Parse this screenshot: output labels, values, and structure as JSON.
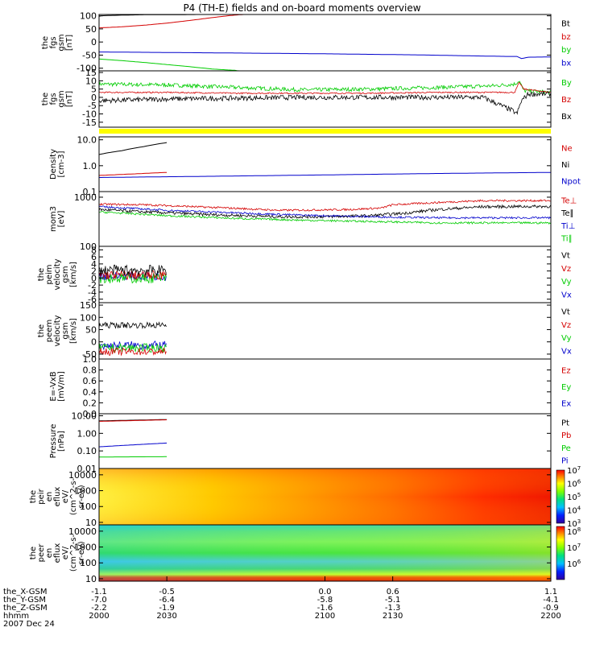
{
  "title": "P4 (TH-E) fields and on-board moments overview",
  "colors": {
    "black": "#000000",
    "red": "#d40000",
    "blue": "#0000cc",
    "green": "#00cc00",
    "yellow": "#ffff00"
  },
  "chart_data": [
    {
      "type": "line",
      "id": "bgsm",
      "ylabel": [
        "the",
        "fgs",
        "gsm",
        "[nT]"
      ],
      "yticks": [
        "100",
        "50",
        "0",
        "-50",
        "-100"
      ],
      "ylim": [
        -110,
        105
      ],
      "yscale": "linear",
      "legend": [
        "Bt",
        "bz",
        "by",
        "bx"
      ],
      "series": [
        {
          "name": "Bt",
          "color": "black",
          "x": [
            2000,
            2001,
            2004,
            2008,
            2013,
            2020,
            2030,
            2045,
            2060,
            2080,
            2100,
            2130,
            2200
          ],
          "y": [
            98,
            100,
            101,
            102,
            103,
            104,
            104,
            105,
            106,
            107,
            108,
            108,
            108
          ]
        },
        {
          "name": "bz",
          "color": "red",
          "x": [
            2000,
            2005,
            2010,
            2015,
            2020,
            2030,
            2040,
            2050,
            2058,
            2062,
            2070,
            2100
          ],
          "y": [
            54,
            56,
            58,
            61,
            64,
            72,
            82,
            93,
            101,
            104,
            108,
            108
          ]
        },
        {
          "name": "by",
          "color": "green",
          "x": [
            2000,
            2010,
            2020,
            2030,
            2040,
            2050,
            2060,
            2064,
            2070
          ],
          "y": [
            -65,
            -71,
            -78,
            -86,
            -94,
            -103,
            -108,
            -112,
            -112
          ]
        },
        {
          "name": "bx",
          "color": "blue",
          "x": [
            2000,
            2030,
            2060,
            2100,
            2140,
            2180,
            2185,
            2187,
            2190,
            2200
          ],
          "y": [
            -38,
            -40,
            -42,
            -45,
            -49,
            -55,
            -55,
            -63,
            -58,
            -57
          ]
        }
      ]
    },
    {
      "type": "line",
      "id": "bdetr",
      "ylabel": [
        "the",
        "fgs",
        "gsm",
        "[nT]"
      ],
      "yticks": [
        "15",
        "10",
        "5",
        "0",
        "-5",
        "-10",
        "-15"
      ],
      "ylim": [
        -18,
        16
      ],
      "yscale": "linear",
      "legend": [
        "By",
        "Bz",
        "Bx"
      ],
      "series": [
        {
          "name": "By",
          "color": "green",
          "noise": 1.2,
          "x": [
            2000,
            2030,
            2060,
            2090,
            2120,
            2150,
            2175,
            2184,
            2186,
            2188,
            2200
          ],
          "y": [
            8,
            7.5,
            6,
            4.5,
            5,
            6,
            7,
            8,
            10,
            4,
            3
          ]
        },
        {
          "name": "Bz",
          "color": "red",
          "noise": 0.4,
          "x": [
            2000,
            2030,
            2060,
            2090,
            2120,
            2150,
            2184,
            2186,
            2188,
            2200
          ],
          "y": [
            3,
            3,
            2.5,
            2.5,
            2.5,
            3,
            3,
            9,
            5,
            3
          ]
        },
        {
          "name": "Bx",
          "color": "black",
          "noise": 1.5,
          "x": [
            2000,
            2030,
            2060,
            2090,
            2120,
            2150,
            2170,
            2183,
            2185,
            2187,
            2190,
            2200
          ],
          "y": [
            -2,
            -1,
            -0.5,
            0,
            0,
            0,
            0,
            -8,
            -10,
            -2,
            2,
            2
          ]
        }
      ]
    },
    {
      "type": "line",
      "id": "dens",
      "ylabel": [
        "Density",
        "[cm-3]"
      ],
      "yticks": [
        "10.0",
        "1.0",
        "0.1"
      ],
      "ylim": [
        0.1,
        13
      ],
      "yscale": "log",
      "legend": [
        "Ne",
        "Ni",
        "Npot"
      ],
      "series": [
        {
          "name": "Ne",
          "color": "red",
          "x": [
            2000,
            2015,
            2030
          ],
          "y": [
            0.42,
            0.48,
            0.55
          ]
        },
        {
          "name": "Ni",
          "color": "black",
          "x": [
            2000,
            2010,
            2020,
            2030
          ],
          "y": [
            2.7,
            3.8,
            5.5,
            7.8
          ]
        },
        {
          "name": "Npot",
          "color": "blue",
          "x": [
            2000,
            2050,
            2100,
            2150,
            2200
          ],
          "y": [
            0.35,
            0.39,
            0.44,
            0.5,
            0.55
          ]
        }
      ]
    },
    {
      "type": "line",
      "id": "temp",
      "ylabel": [
        "mom3",
        "[eV]"
      ],
      "yticks": [
        "1000",
        "100"
      ],
      "ylim": [
        100,
        1300
      ],
      "yscale": "log",
      "legend": [
        "Te⊥",
        "Te∥",
        "Ti⊥",
        "Ti∥"
      ],
      "series": [
        {
          "name": "Te⊥",
          "color": "red",
          "noise": 0.02,
          "x": [
            2000,
            2020,
            2050,
            2080,
            2110,
            2125,
            2130,
            2150,
            2170,
            2200
          ],
          "y": [
            720,
            700,
            620,
            540,
            560,
            600,
            700,
            780,
            850,
            850
          ]
        },
        {
          "name": "Te∥",
          "color": "black",
          "noise": 0.03,
          "x": [
            2000,
            2020,
            2050,
            2080,
            2100,
            2120,
            2135,
            2150,
            2170,
            2200
          ],
          "y": [
            560,
            500,
            440,
            400,
            400,
            420,
            470,
            560,
            640,
            650
          ]
        },
        {
          "name": "Ti⊥",
          "color": "blue",
          "noise": 0.02,
          "x": [
            2000,
            2030,
            2060,
            2090,
            2120,
            2150,
            2200
          ],
          "y": [
            640,
            540,
            480,
            430,
            400,
            380,
            380
          ]
        },
        {
          "name": "Ti∥",
          "color": "green",
          "noise": 0.02,
          "x": [
            2000,
            2030,
            2060,
            2090,
            2120,
            2150,
            2200
          ],
          "y": [
            500,
            420,
            370,
            340,
            320,
            300,
            300
          ]
        }
      ]
    },
    {
      "type": "line",
      "id": "vel",
      "ylabel": [
        "the",
        "peim",
        "velocity",
        "gsm",
        "[km/s]"
      ],
      "yticks": [
        "8",
        "6",
        "4",
        "2",
        "0",
        "-2",
        "-4",
        "-6"
      ],
      "ylim": [
        -7,
        9
      ],
      "yscale": "linear",
      "legend": [
        "Vt",
        "Vz",
        "Vy",
        "Vx"
      ],
      "series": [
        {
          "name": "Vx",
          "color": "blue",
          "noise": 1.2,
          "x": [
            2000,
            2030
          ],
          "y": [
            0.5,
            0.5
          ]
        },
        {
          "name": "Vy",
          "color": "green",
          "noise": 1.5,
          "x": [
            2000,
            2030
          ],
          "y": [
            0,
            0
          ]
        },
        {
          "name": "Vz",
          "color": "red",
          "noise": 1.3,
          "x": [
            2000,
            2030
          ],
          "y": [
            0.8,
            0.8
          ]
        },
        {
          "name": "Vt",
          "color": "black",
          "noise": 1.5,
          "x": [
            2000,
            2030
          ],
          "y": [
            2.2,
            2.2
          ]
        }
      ]
    },
    {
      "type": "line",
      "id": "velb",
      "ylabel": [
        "the",
        "peem",
        "velocity",
        "gsm",
        "[km/s]"
      ],
      "yticks": [
        "150",
        "100",
        "50",
        "0",
        "-50"
      ],
      "ylim": [
        -70,
        160
      ],
      "yscale": "linear",
      "legend": [
        "Vt",
        "Vz",
        "Vy",
        "Vx"
      ],
      "series": [
        {
          "name": "Vx",
          "color": "blue",
          "noise": 18,
          "x": [
            2000,
            2030
          ],
          "y": [
            -15,
            -15
          ]
        },
        {
          "name": "Vy",
          "color": "green",
          "noise": 18,
          "x": [
            2000,
            2030
          ],
          "y": [
            -25,
            -25
          ]
        },
        {
          "name": "Vz",
          "color": "red",
          "noise": 15,
          "x": [
            2000,
            2030
          ],
          "y": [
            -40,
            -40
          ]
        },
        {
          "name": "Vt",
          "color": "black",
          "noise": 12,
          "x": [
            2000,
            2030
          ],
          "y": [
            68,
            68
          ]
        }
      ]
    },
    {
      "type": "line",
      "id": "efield",
      "ylabel": [
        "E=-VxB",
        "[mV/m]"
      ],
      "yticks": [
        "1.0",
        "0.8",
        "0.6",
        "0.4",
        "0.2",
        "0.0"
      ],
      "ylim": [
        0,
        1
      ],
      "yscale": "linear",
      "legend": [
        "Ez",
        "Ey",
        "Ex"
      ],
      "series": []
    },
    {
      "type": "line",
      "id": "press",
      "ylabel": [
        "Pressure",
        "[nPa]"
      ],
      "yticks": [
        "10.00",
        "1.00",
        "0.10",
        "0.01"
      ],
      "ylim": [
        0.01,
        13
      ],
      "yscale": "log",
      "legend": [
        "Pt",
        "Pb",
        "Pe",
        "Pi"
      ],
      "series": [
        {
          "name": "Pt",
          "color": "black",
          "x": [
            2000,
            2015,
            2030
          ],
          "y": [
            5.1,
            5.6,
            6.1
          ]
        },
        {
          "name": "Pb",
          "color": "red",
          "x": [
            2000,
            2015,
            2030
          ],
          "y": [
            4.8,
            5.3,
            5.9
          ]
        },
        {
          "name": "Pi",
          "color": "blue",
          "x": [
            2000,
            2015,
            2030
          ],
          "y": [
            0.17,
            0.22,
            0.28
          ]
        },
        {
          "name": "Pe",
          "color": "green",
          "x": [
            2000,
            2015,
            2030
          ],
          "y": [
            0.045,
            0.046,
            0.047
          ]
        }
      ]
    },
    {
      "type": "heatmap",
      "id": "ispec",
      "ylabel": [
        "the",
        "peir",
        "en",
        "eflux",
        "eV/",
        "(cm^2-s-",
        "sr-eV)"
      ],
      "yticks": [
        "10000",
        "1000",
        "100",
        "10"
      ],
      "ylim": [
        7,
        25000
      ],
      "yscale": "log",
      "colorbar": {
        "range_exp": [
          3,
          7
        ],
        "labels": [
          "7",
          "6",
          "5",
          "4",
          "3"
        ]
      }
    },
    {
      "type": "heatmap",
      "id": "espec",
      "ylabel": [
        "the",
        "peer",
        "en",
        "eflux",
        "eV/",
        "(cm^2-s-",
        "sr-eV)"
      ],
      "yticks": [
        "10000",
        "1000",
        "100",
        "10"
      ],
      "ylim": [
        7,
        25000
      ],
      "yscale": "log",
      "colorbar": {
        "range_exp": [
          5,
          8.3
        ],
        "labels": [
          "8",
          "7",
          "6"
        ]
      }
    }
  ],
  "xaxis": {
    "range": [
      2000,
      2200
    ],
    "tick_x": [
      2000,
      2030,
      2100,
      2130,
      2200
    ],
    "rows": [
      {
        "label": "the_X-GSM",
        "values": [
          "-1.1",
          "-0.5",
          "0.0",
          "0.6",
          "1.1"
        ]
      },
      {
        "label": "the_Y-GSM",
        "values": [
          "-7.0",
          "-6.4",
          "-5.8",
          "-5.1",
          "-4.1"
        ]
      },
      {
        "label": "the_Z-GSM",
        "values": [
          "-2.2",
          "-1.9",
          "-1.6",
          "-1.3",
          "-0.9"
        ]
      },
      {
        "label": "hhmm",
        "values": [
          "2000",
          "2030",
          "2100",
          "2130",
          "2200"
        ]
      }
    ],
    "date": "2007 Dec 24"
  }
}
